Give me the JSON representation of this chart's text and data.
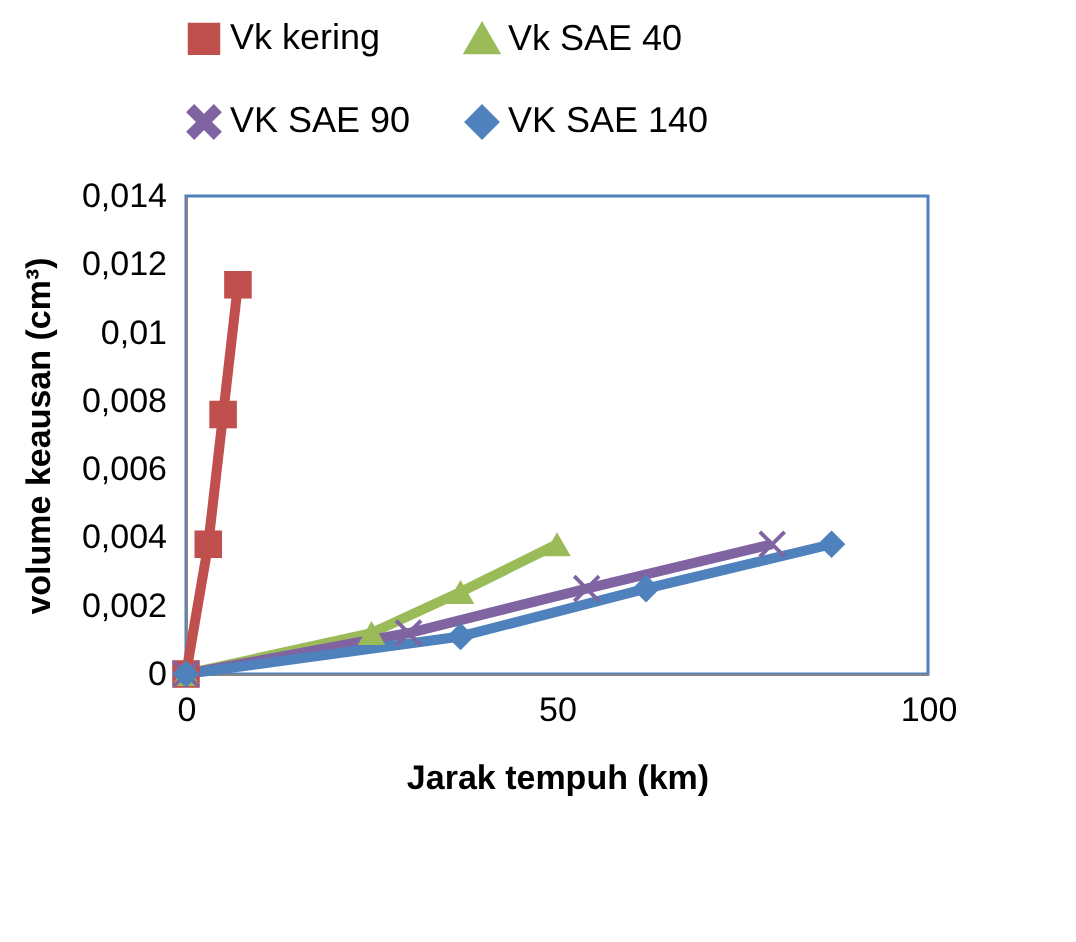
{
  "chart_data": {
    "type": "line",
    "xlabel": "Jarak tempuh (km)",
    "ylabel": "volume keausan (cm³)",
    "xlim": [
      0,
      100
    ],
    "xticks": [
      0,
      50,
      100
    ],
    "ylim": [
      0,
      0.014
    ],
    "yticks": [
      {
        "value": 0,
        "label": "0"
      },
      {
        "value": 0.002,
        "label": "0,002"
      },
      {
        "value": 0.004,
        "label": "0,004"
      },
      {
        "value": 0.006,
        "label": "0,006"
      },
      {
        "value": 0.008,
        "label": "0,008"
      },
      {
        "value": 0.01,
        "label": "0,01"
      },
      {
        "value": 0.012,
        "label": "0,012"
      },
      {
        "value": 0.014,
        "label": "0,014"
      }
    ],
    "grid": false,
    "legend": "top",
    "series": [
      {
        "name": "Vk kering",
        "color": "#c0504d",
        "marker": "square",
        "x": [
          0,
          3,
          5,
          7
        ],
        "values": [
          0,
          0.0038,
          0.0076,
          0.0114
        ]
      },
      {
        "name": "Vk SAE 40",
        "color": "#9bbb59",
        "marker": "triangle",
        "x": [
          0,
          25,
          37,
          50
        ],
        "values": [
          0,
          0.0012,
          0.0024,
          0.0038
        ]
      },
      {
        "name": "VK SAE 90",
        "color": "#8064a2",
        "marker": "cross",
        "x": [
          0,
          30,
          54,
          79
        ],
        "values": [
          0,
          0.0012,
          0.0025,
          0.0038
        ]
      },
      {
        "name": "VK SAE 140",
        "color": "#4f81bd",
        "marker": "diamond",
        "x": [
          0,
          37,
          62,
          87
        ],
        "values": [
          0,
          0.0011,
          0.0025,
          0.0038
        ]
      }
    ]
  }
}
